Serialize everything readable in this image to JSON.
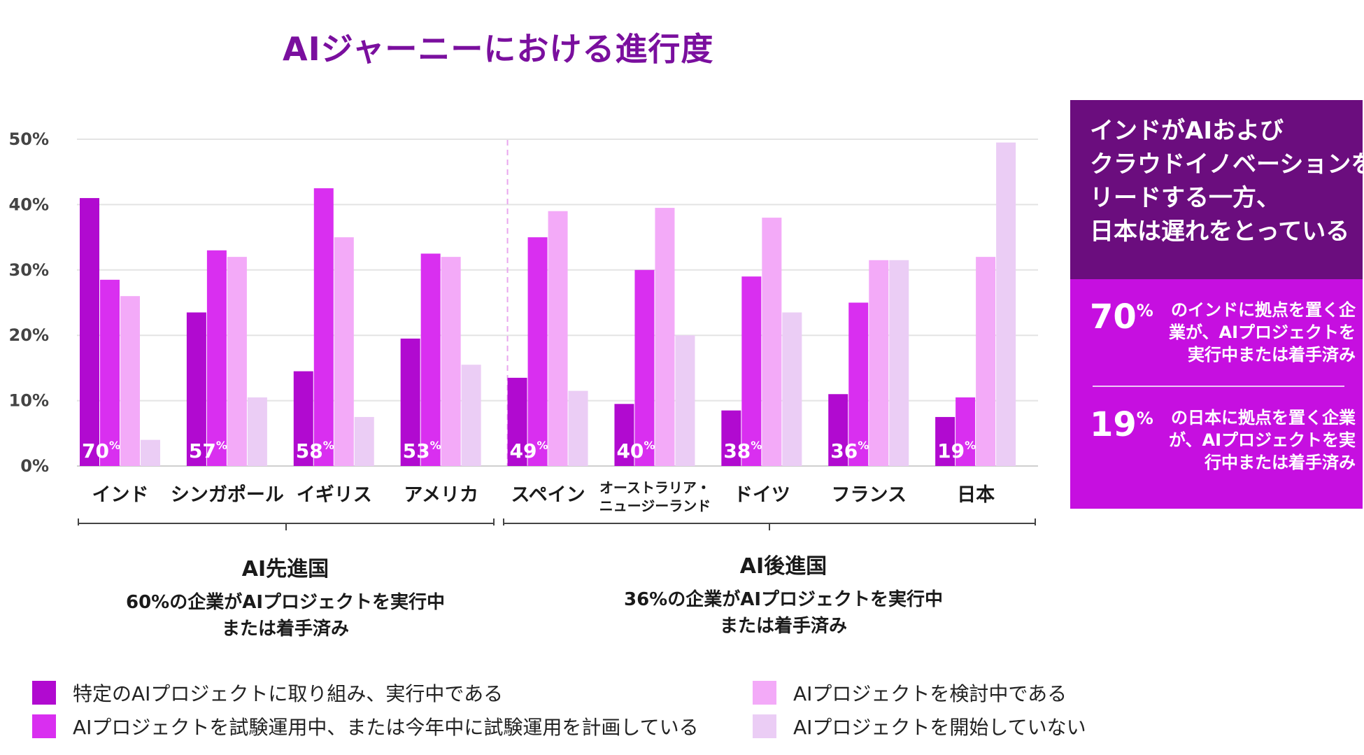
{
  "title": "AIジャーニーにおける進行度",
  "colors": {
    "series": [
      "#b10ad0",
      "#d92ff0",
      "#f3aaf8",
      "#ebcdf5"
    ],
    "panel_top": "#6b0d7e",
    "panel_bottom": "#c60fe0",
    "title": "#7a0f9e"
  },
  "chart_data": {
    "type": "bar",
    "title": "AIジャーニーにおける進行度",
    "categories": [
      "インド",
      "シンガポール",
      "イギリス",
      "アメリカ",
      "スペイン",
      "オーストラリア・\nニュージーランド",
      "ドイツ",
      "フランス",
      "日本"
    ],
    "series": [
      {
        "name": "特定のAIプロジェクトに取り組み、実行中である",
        "values": [
          41,
          23.5,
          14.5,
          19.5,
          13.5,
          9.5,
          8.5,
          11,
          7.5
        ]
      },
      {
        "name": "AIプロジェクトを試験運用中、または今年中に試験運用を計画している",
        "values": [
          28.5,
          33,
          42.5,
          32.5,
          35,
          30,
          29,
          25,
          10.5
        ]
      },
      {
        "name": "AIプロジェクトを検討中である",
        "values": [
          26,
          32,
          35,
          32,
          39,
          39.5,
          38,
          31.5,
          32
        ]
      },
      {
        "name": "AIプロジェクトを開始していない",
        "values": [
          4,
          10.5,
          7.5,
          15.5,
          11.5,
          20,
          23.5,
          31.5,
          49.5
        ]
      }
    ],
    "bar_labels": [
      "70%",
      "57%",
      "58%",
      "53%",
      "49%",
      "40%",
      "38%",
      "36%",
      "19%"
    ],
    "y_ticks": [
      "0%",
      "10%",
      "20%",
      "30%",
      "40%",
      "50%"
    ],
    "ylim": [
      0,
      50
    ],
    "xlabel": "",
    "ylabel": "",
    "legend_position": "bottom",
    "grid": true
  },
  "groups": [
    {
      "title": "AI先進国",
      "line1": "60%の企業がAIプロジェクトを実行中",
      "line2": "または着手済み"
    },
    {
      "title": "AI後進国",
      "line1": "36%の企業がAIプロジェクトを実行中",
      "line2": "または着手済み"
    }
  ],
  "panel": {
    "headline": [
      "インドがAIおよび",
      "クラウドイノベーションを",
      "リードする一方、",
      "日本は遅れをとっている"
    ],
    "stats": [
      {
        "number": "70",
        "unit": "%",
        "text": "のインドに拠点を置く企業が、AIプロジェクトを実行中または着手済み"
      },
      {
        "number": "19",
        "unit": "%",
        "text": "の日本に拠点を置く企業が、AIプロジェクトを実行中または着手済み"
      }
    ]
  }
}
